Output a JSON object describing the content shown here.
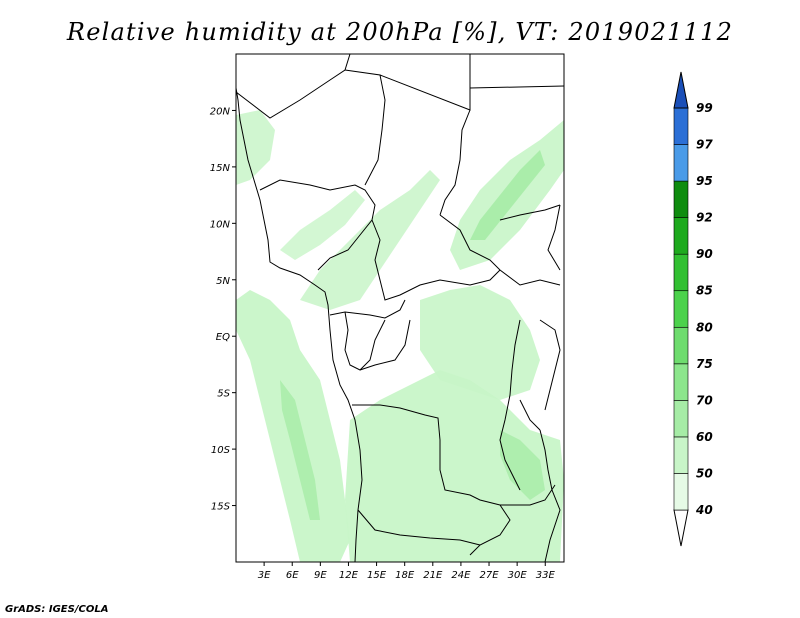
{
  "title": "Relative humidity at 200hPa [%], VT: 2019021112",
  "credit": "GrADS: IGES/COLA",
  "map": {
    "lon_range": [
      0,
      35
    ],
    "lat_range": [
      -20,
      25
    ],
    "lon_ticks": [
      {
        "value": 3,
        "label": "3E"
      },
      {
        "value": 6,
        "label": "6E"
      },
      {
        "value": 9,
        "label": "9E"
      },
      {
        "value": 12,
        "label": "12E"
      },
      {
        "value": 15,
        "label": "15E"
      },
      {
        "value": 18,
        "label": "18E"
      },
      {
        "value": 21,
        "label": "21E"
      },
      {
        "value": 24,
        "label": "24E"
      },
      {
        "value": 27,
        "label": "27E"
      },
      {
        "value": 30,
        "label": "30E"
      },
      {
        "value": 33,
        "label": "33E"
      }
    ],
    "lat_ticks": [
      {
        "value": 20,
        "label": "20N"
      },
      {
        "value": 15,
        "label": "15N"
      },
      {
        "value": 10,
        "label": "10N"
      },
      {
        "value": 5,
        "label": "5N"
      },
      {
        "value": 0,
        "label": "EQ"
      },
      {
        "value": -5,
        "label": "5S"
      },
      {
        "value": -10,
        "label": "10S"
      },
      {
        "value": -15,
        "label": "15S"
      }
    ]
  },
  "colorbar": {
    "levels": [
      "40",
      "50",
      "60",
      "70",
      "75",
      "80",
      "85",
      "90",
      "92",
      "95",
      "97",
      "99"
    ],
    "colors": [
      "#ffffff",
      "#e6fae6",
      "#c8f5c8",
      "#a6eca6",
      "#8ce68c",
      "#6edc6e",
      "#4cd24c",
      "#32c032",
      "#1eaa1e",
      "#0f8c0f",
      "#4a9be8",
      "#2b6fd6",
      "#1a4fb8"
    ]
  }
}
